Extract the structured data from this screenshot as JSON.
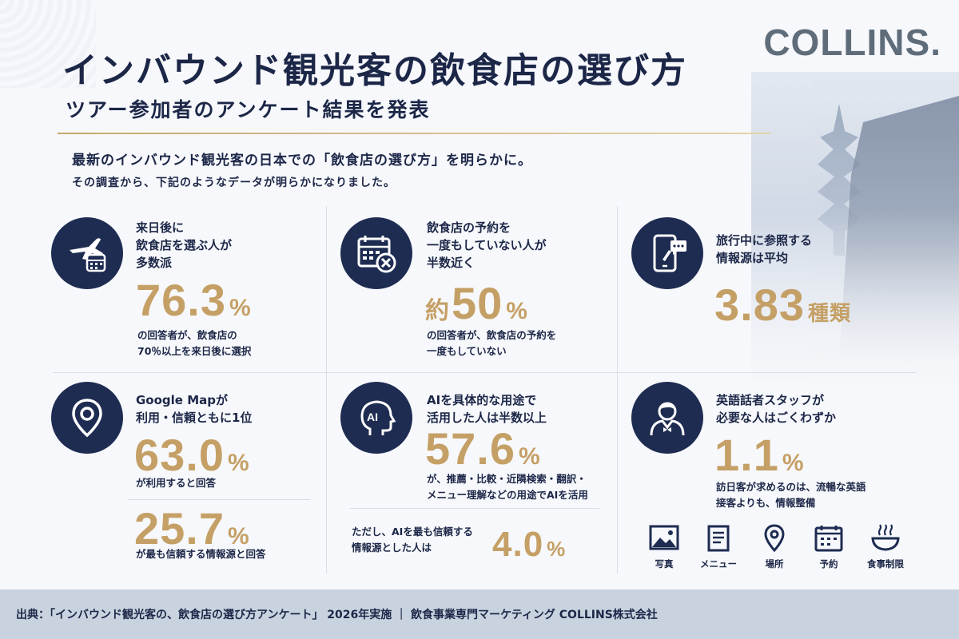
{
  "brand": "COLLINS.",
  "title": "インバウンド観光客の飲食店の選び方",
  "subtitle": "ツアー参加者のアンケート結果を発表",
  "intro": {
    "line1": "最新のインバウンド観光客の日本での「飲食店の選び方」を明らかに。",
    "line2": "その調査から、下記のようなデータが明らかになりました。"
  },
  "cards": [
    {
      "icon": "plane-calendar-icon",
      "label": "来日後に\n飲食店を選ぶ人が\n多数派",
      "value": "76.3",
      "unit": "%",
      "note": "の回答者が、飲食店の\n70％以上を来日後に選択"
    },
    {
      "icon": "calendar-cross-icon",
      "label": "飲食店の予約を\n一度もしていない人が\n半数近く",
      "prefix": "約",
      "value": "50",
      "unit": "%",
      "note": "の回答者が、飲食店の予約を\n一度もしていない"
    },
    {
      "icon": "smartphone-chat-icon",
      "label": "旅行中に参照する\n情報源は平均",
      "value": "3.83",
      "unit": "種類"
    },
    {
      "icon": "map-pin-icon",
      "label": "Google Mapが\n利用・信頼ともに1位",
      "value": "63.0",
      "unit": "%",
      "note": "が利用すると回答",
      "value2": "25.7",
      "unit2": "%",
      "note2": "が最も信頼する情報源と回答"
    },
    {
      "icon": "ai-head-icon",
      "label": "AIを具体的な用途で\n活用した人は半数以上",
      "value": "57.6",
      "unit": "%",
      "note": "が、推薦・比較・近隣検索・翻訳・\nメニュー理解などの用途でAIを活用",
      "note2": "ただし、AIを最も信頼する\n情報源とした人は",
      "value2": "4.0",
      "unit2": "%"
    },
    {
      "icon": "staff-person-icon",
      "label": "英語話者スタッフが\n必要な人はごくわずか",
      "value": "1.1",
      "unit": "%",
      "note": "訪日客が求めるのは、流暢な英語\n接客よりも、情報整備"
    }
  ],
  "info_items": [
    {
      "icon": "photo-icon",
      "label": "写真"
    },
    {
      "icon": "menu-icon",
      "label": "メニュー"
    },
    {
      "icon": "location-icon",
      "label": "場所"
    },
    {
      "icon": "reservation-icon",
      "label": "予約"
    },
    {
      "icon": "food-restriction-icon",
      "label": "食事制限"
    }
  ],
  "footer": "出典：「インバウンド観光客の、飲食店の選び方アンケート」 2026年実施 ｜ 飲食事業専門マーケティング COLLINS株式会社",
  "colors": {
    "navy": "#1e2c52",
    "gold": "#c5a066",
    "footer_bg": "#c9d3df"
  }
}
